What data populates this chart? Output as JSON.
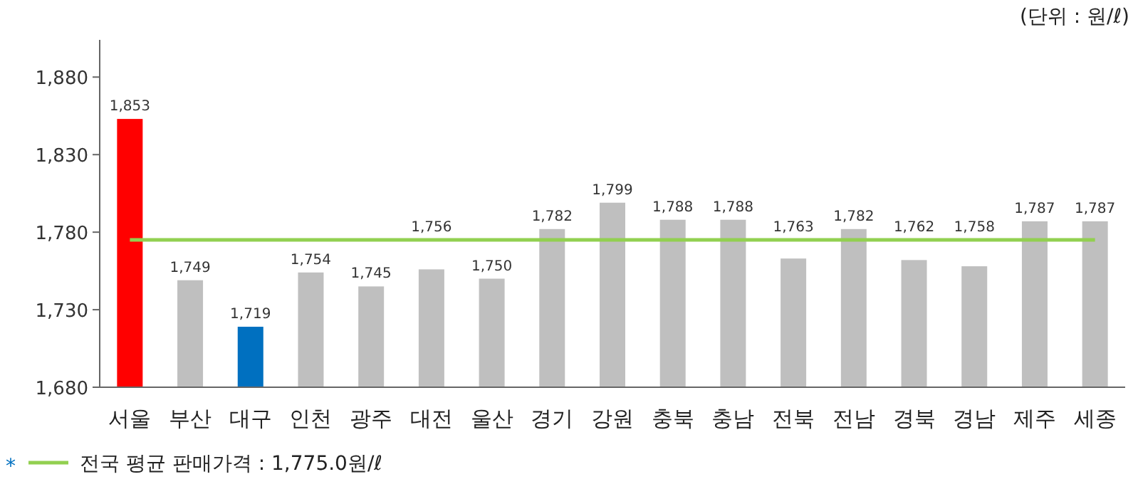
{
  "chart_data": {
    "type": "bar",
    "categories": [
      "서울",
      "부산",
      "대구",
      "인천",
      "광주",
      "대전",
      "울산",
      "경기",
      "강원",
      "충북",
      "충남",
      "전북",
      "전남",
      "경북",
      "경남",
      "제주",
      "세종"
    ],
    "values": [
      1853,
      1749,
      1719,
      1754,
      1745,
      1756,
      1750,
      1782,
      1799,
      1788,
      1788,
      1763,
      1782,
      1762,
      1758,
      1787,
      1787
    ],
    "colors": [
      "#ff0000",
      "#bfbfbf",
      "#0070c0",
      "#bfbfbf",
      "#bfbfbf",
      "#bfbfbf",
      "#bfbfbf",
      "#bfbfbf",
      "#bfbfbf",
      "#bfbfbf",
      "#bfbfbf",
      "#bfbfbf",
      "#bfbfbf",
      "#bfbfbf",
      "#bfbfbf",
      "#bfbfbf",
      "#bfbfbf"
    ],
    "value_labels": [
      "1,853",
      "1,749",
      "1,719",
      "1,754",
      "1,745",
      "1,756",
      "1,750",
      "1,782",
      "1,799",
      "1,788",
      "1,788",
      "1,763",
      "1,782",
      "1,762",
      "1,758",
      "1,787",
      "1,787"
    ],
    "ylim": [
      1680,
      1904
    ],
    "yticks": [
      {
        "value": 1680,
        "label": "1,680"
      },
      {
        "value": 1730,
        "label": "1,730"
      },
      {
        "value": 1780,
        "label": "1,780"
      },
      {
        "value": 1830,
        "label": "1,830"
      },
      {
        "value": 1880,
        "label": "1,880"
      }
    ],
    "ref_lines": [
      {
        "axis": "y",
        "value": 1775,
        "label": "전국 평균 판매가격 : 1,775.0원/ℓ",
        "color": "#92d050"
      }
    ],
    "annotations": [
      "(단위 : 원/ℓ)",
      "*"
    ],
    "grid": false,
    "legend": "bottom left"
  }
}
